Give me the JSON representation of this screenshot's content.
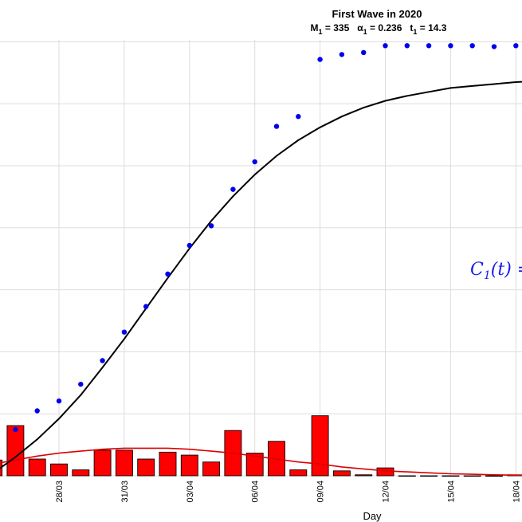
{
  "chart_data": {
    "type": "line",
    "title": "First Wave in 2020",
    "subtitle": {
      "m_label": "M",
      "m_sub": "1",
      "m_value": " = 335",
      "a_label": "α",
      "a_sub": "1",
      "a_value": " = 0.236",
      "t_label": "t",
      "t_sub": "1",
      "t_value": " = 14.3"
    },
    "xlabel": "Day",
    "ylabel": "",
    "annotation": "C1(t) =",
    "annotation_parts": {
      "main": "C",
      "sub": "1",
      "rest": "(t) ="
    },
    "x_ticks": [
      {
        "day": 28,
        "label": "28/03"
      },
      {
        "day": 31,
        "label": "31/03"
      },
      {
        "day": 34,
        "label": "03/04"
      },
      {
        "day": 37,
        "label": "06/04"
      },
      {
        "day": 40,
        "label": "09/04"
      },
      {
        "day": 43,
        "label": "12/04"
      },
      {
        "day": 46,
        "label": "15/04"
      },
      {
        "day": 49,
        "label": "18/04"
      }
    ],
    "grid": true,
    "colors": {
      "points": "#0000ee",
      "fit_curve": "#000000",
      "bars": "#ff0000",
      "bar_curve": "#dd0000",
      "annotation": "#1a1aee",
      "grid": "#dddddd"
    },
    "series": [
      {
        "type": "scatter",
        "x": [
          26,
          27,
          28,
          29,
          30,
          31,
          32,
          33,
          34,
          35,
          36,
          37,
          38,
          39,
          40,
          41,
          42,
          43,
          44,
          45,
          46,
          47,
          48,
          49
        ],
        "values": [
          47,
          66,
          76,
          93,
          117,
          146,
          172,
          205,
          234,
          254,
          291,
          319,
          355,
          365,
          423,
          428,
          430,
          437,
          437,
          437,
          437,
          437,
          436,
          437
        ]
      },
      {
        "type": "line",
        "x": [
          25,
          26,
          27,
          28,
          29,
          30,
          31,
          32,
          33,
          34,
          35,
          36,
          37,
          38,
          39,
          40,
          41,
          42,
          43,
          44,
          45,
          46,
          47,
          48,
          49,
          50
        ],
        "values": [
          3,
          19,
          37,
          58,
          82,
          110,
          139,
          170,
          201,
          231,
          259,
          284,
          306,
          325,
          341,
          354,
          365,
          374,
          381,
          386,
          390,
          394,
          396,
          398,
          400,
          401
        ]
      },
      {
        "type": "bar",
        "x": [
          25,
          26,
          27,
          28,
          29,
          30,
          31,
          32,
          33,
          34,
          35,
          36,
          37,
          38,
          39,
          40,
          41,
          42,
          43,
          44,
          45,
          46,
          47,
          48,
          49
        ],
        "values": [
          16,
          51,
          17,
          12,
          6,
          26,
          26,
          17,
          24,
          21,
          14,
          46,
          23,
          35,
          6,
          61,
          5,
          1,
          8,
          0,
          0,
          0,
          0,
          0,
          1
        ]
      },
      {
        "type": "line",
        "x": [
          25,
          26,
          27,
          28,
          29,
          30,
          31,
          32,
          33,
          34,
          35,
          36,
          37,
          38,
          39,
          40,
          41,
          42,
          43,
          44,
          45,
          46,
          47,
          48,
          49,
          50
        ],
        "values": [
          12,
          16,
          20,
          23,
          25,
          27,
          28,
          28,
          28,
          27,
          25,
          23,
          20,
          17,
          14,
          12,
          9,
          7,
          5,
          4,
          3,
          2,
          1.5,
          1,
          0.6,
          0.4
        ]
      }
    ]
  }
}
